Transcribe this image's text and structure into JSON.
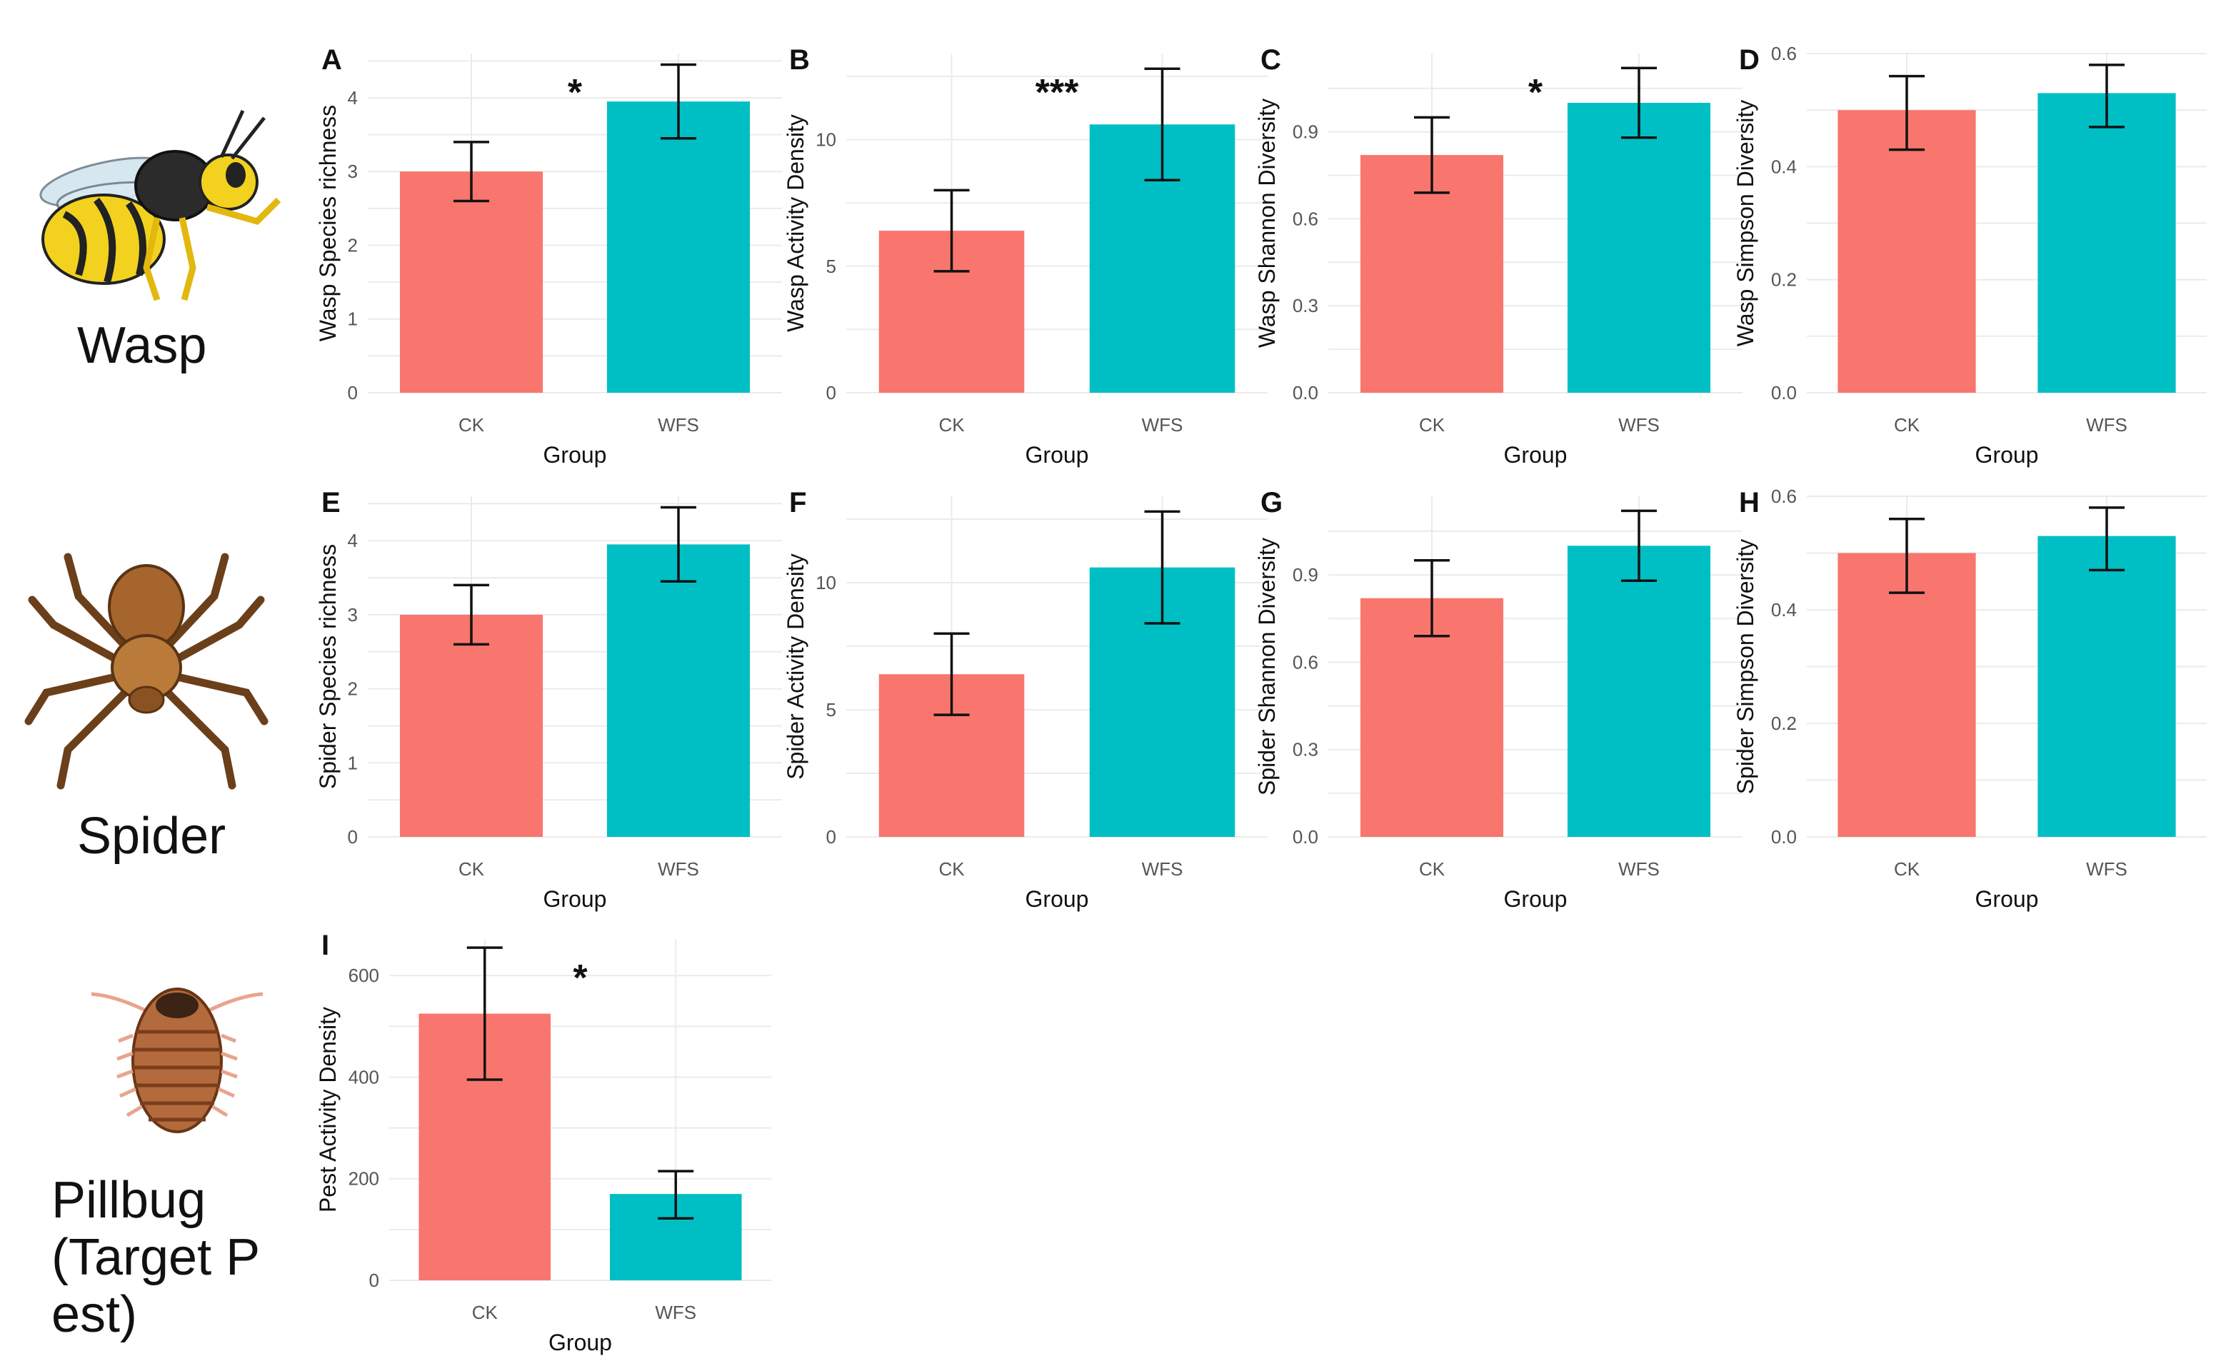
{
  "taxa": [
    "Wasp",
    "Spider",
    "Pillbug\n(Target P\nest)"
  ],
  "colors": {
    "CK": "#F8766D",
    "WFS": "#00BFC4",
    "grid": "#EBEBEB"
  },
  "icons": [
    "wasp-illustration",
    "spider-illustration",
    "pillbug-illustration"
  ],
  "chart_data": [
    {
      "panel": "A",
      "type": "bar",
      "categories": [
        "CK",
        "WFS"
      ],
      "values": [
        3.0,
        3.95
      ],
      "error_low": [
        2.6,
        3.45
      ],
      "error_high": [
        3.4,
        4.45
      ],
      "ylabel": "Wasp Species richness",
      "xlabel": "Group",
      "ylim": [
        0,
        4.6
      ],
      "yticks": [
        0,
        1,
        2,
        3,
        4
      ],
      "significance": "*"
    },
    {
      "panel": "B",
      "type": "bar",
      "categories": [
        "CK",
        "WFS"
      ],
      "values": [
        6.4,
        10.6
      ],
      "error_low": [
        4.8,
        8.4
      ],
      "error_high": [
        8.0,
        12.8
      ],
      "ylabel": "Wasp Activity Density",
      "xlabel": "Group",
      "ylim": [
        0,
        13.4
      ],
      "yticks": [
        0,
        5,
        10
      ],
      "significance": "***"
    },
    {
      "panel": "C",
      "type": "bar",
      "categories": [
        "CK",
        "WFS"
      ],
      "values": [
        0.82,
        1.0
      ],
      "error_low": [
        0.69,
        0.88
      ],
      "error_high": [
        0.95,
        1.12
      ],
      "ylabel": "Wasp Shannon Diversity",
      "xlabel": "Group",
      "ylim": [
        0,
        1.17
      ],
      "yticks": [
        0.0,
        0.3,
        0.6,
        0.9
      ],
      "significance": "*"
    },
    {
      "panel": "D",
      "type": "bar",
      "categories": [
        "CK",
        "WFS"
      ],
      "values": [
        0.5,
        0.53
      ],
      "error_low": [
        0.43,
        0.47
      ],
      "error_high": [
        0.56,
        0.58
      ],
      "ylabel": "Wasp Simpson Diversity",
      "xlabel": "Group",
      "ylim": [
        0,
        0.6
      ],
      "yticks": [
        0.0,
        0.2,
        0.4,
        0.6
      ],
      "significance": ""
    },
    {
      "panel": "E",
      "type": "bar",
      "categories": [
        "CK",
        "WFS"
      ],
      "values": [
        3.0,
        3.95
      ],
      "error_low": [
        2.6,
        3.45
      ],
      "error_high": [
        3.4,
        4.45
      ],
      "ylabel": "Spider Species richness",
      "xlabel": "Group",
      "ylim": [
        0,
        4.6
      ],
      "yticks": [
        0,
        1,
        2,
        3,
        4
      ],
      "significance": ""
    },
    {
      "panel": "F",
      "type": "bar",
      "categories": [
        "CK",
        "WFS"
      ],
      "values": [
        6.4,
        10.6
      ],
      "error_low": [
        4.8,
        8.4
      ],
      "error_high": [
        8.0,
        12.8
      ],
      "ylabel": "Spider Activity Density",
      "xlabel": "Group",
      "ylim": [
        0,
        13.4
      ],
      "yticks": [
        0,
        5,
        10
      ],
      "significance": ""
    },
    {
      "panel": "G",
      "type": "bar",
      "categories": [
        "CK",
        "WFS"
      ],
      "values": [
        0.82,
        1.0
      ],
      "error_low": [
        0.69,
        0.88
      ],
      "error_high": [
        0.95,
        1.12
      ],
      "ylabel": "Spider Shannon Diversity",
      "xlabel": "Group",
      "ylim": [
        0,
        1.17
      ],
      "yticks": [
        0.0,
        0.3,
        0.6,
        0.9
      ],
      "significance": ""
    },
    {
      "panel": "H",
      "type": "bar",
      "categories": [
        "CK",
        "WFS"
      ],
      "values": [
        0.5,
        0.53
      ],
      "error_low": [
        0.43,
        0.47
      ],
      "error_high": [
        0.56,
        0.58
      ],
      "ylabel": "Spider Simpson Diversity",
      "xlabel": "Group",
      "ylim": [
        0,
        0.6
      ],
      "yticks": [
        0.0,
        0.2,
        0.4,
        0.6
      ],
      "significance": ""
    },
    {
      "panel": "I",
      "type": "bar",
      "categories": [
        "CK",
        "WFS"
      ],
      "values": [
        525,
        170
      ],
      "error_low": [
        395,
        122
      ],
      "error_high": [
        655,
        215
      ],
      "ylabel": "Pest Activity Density",
      "xlabel": "Group",
      "ylim": [
        0,
        672
      ],
      "yticks": [
        0,
        200,
        400,
        600
      ],
      "significance": "*"
    }
  ]
}
